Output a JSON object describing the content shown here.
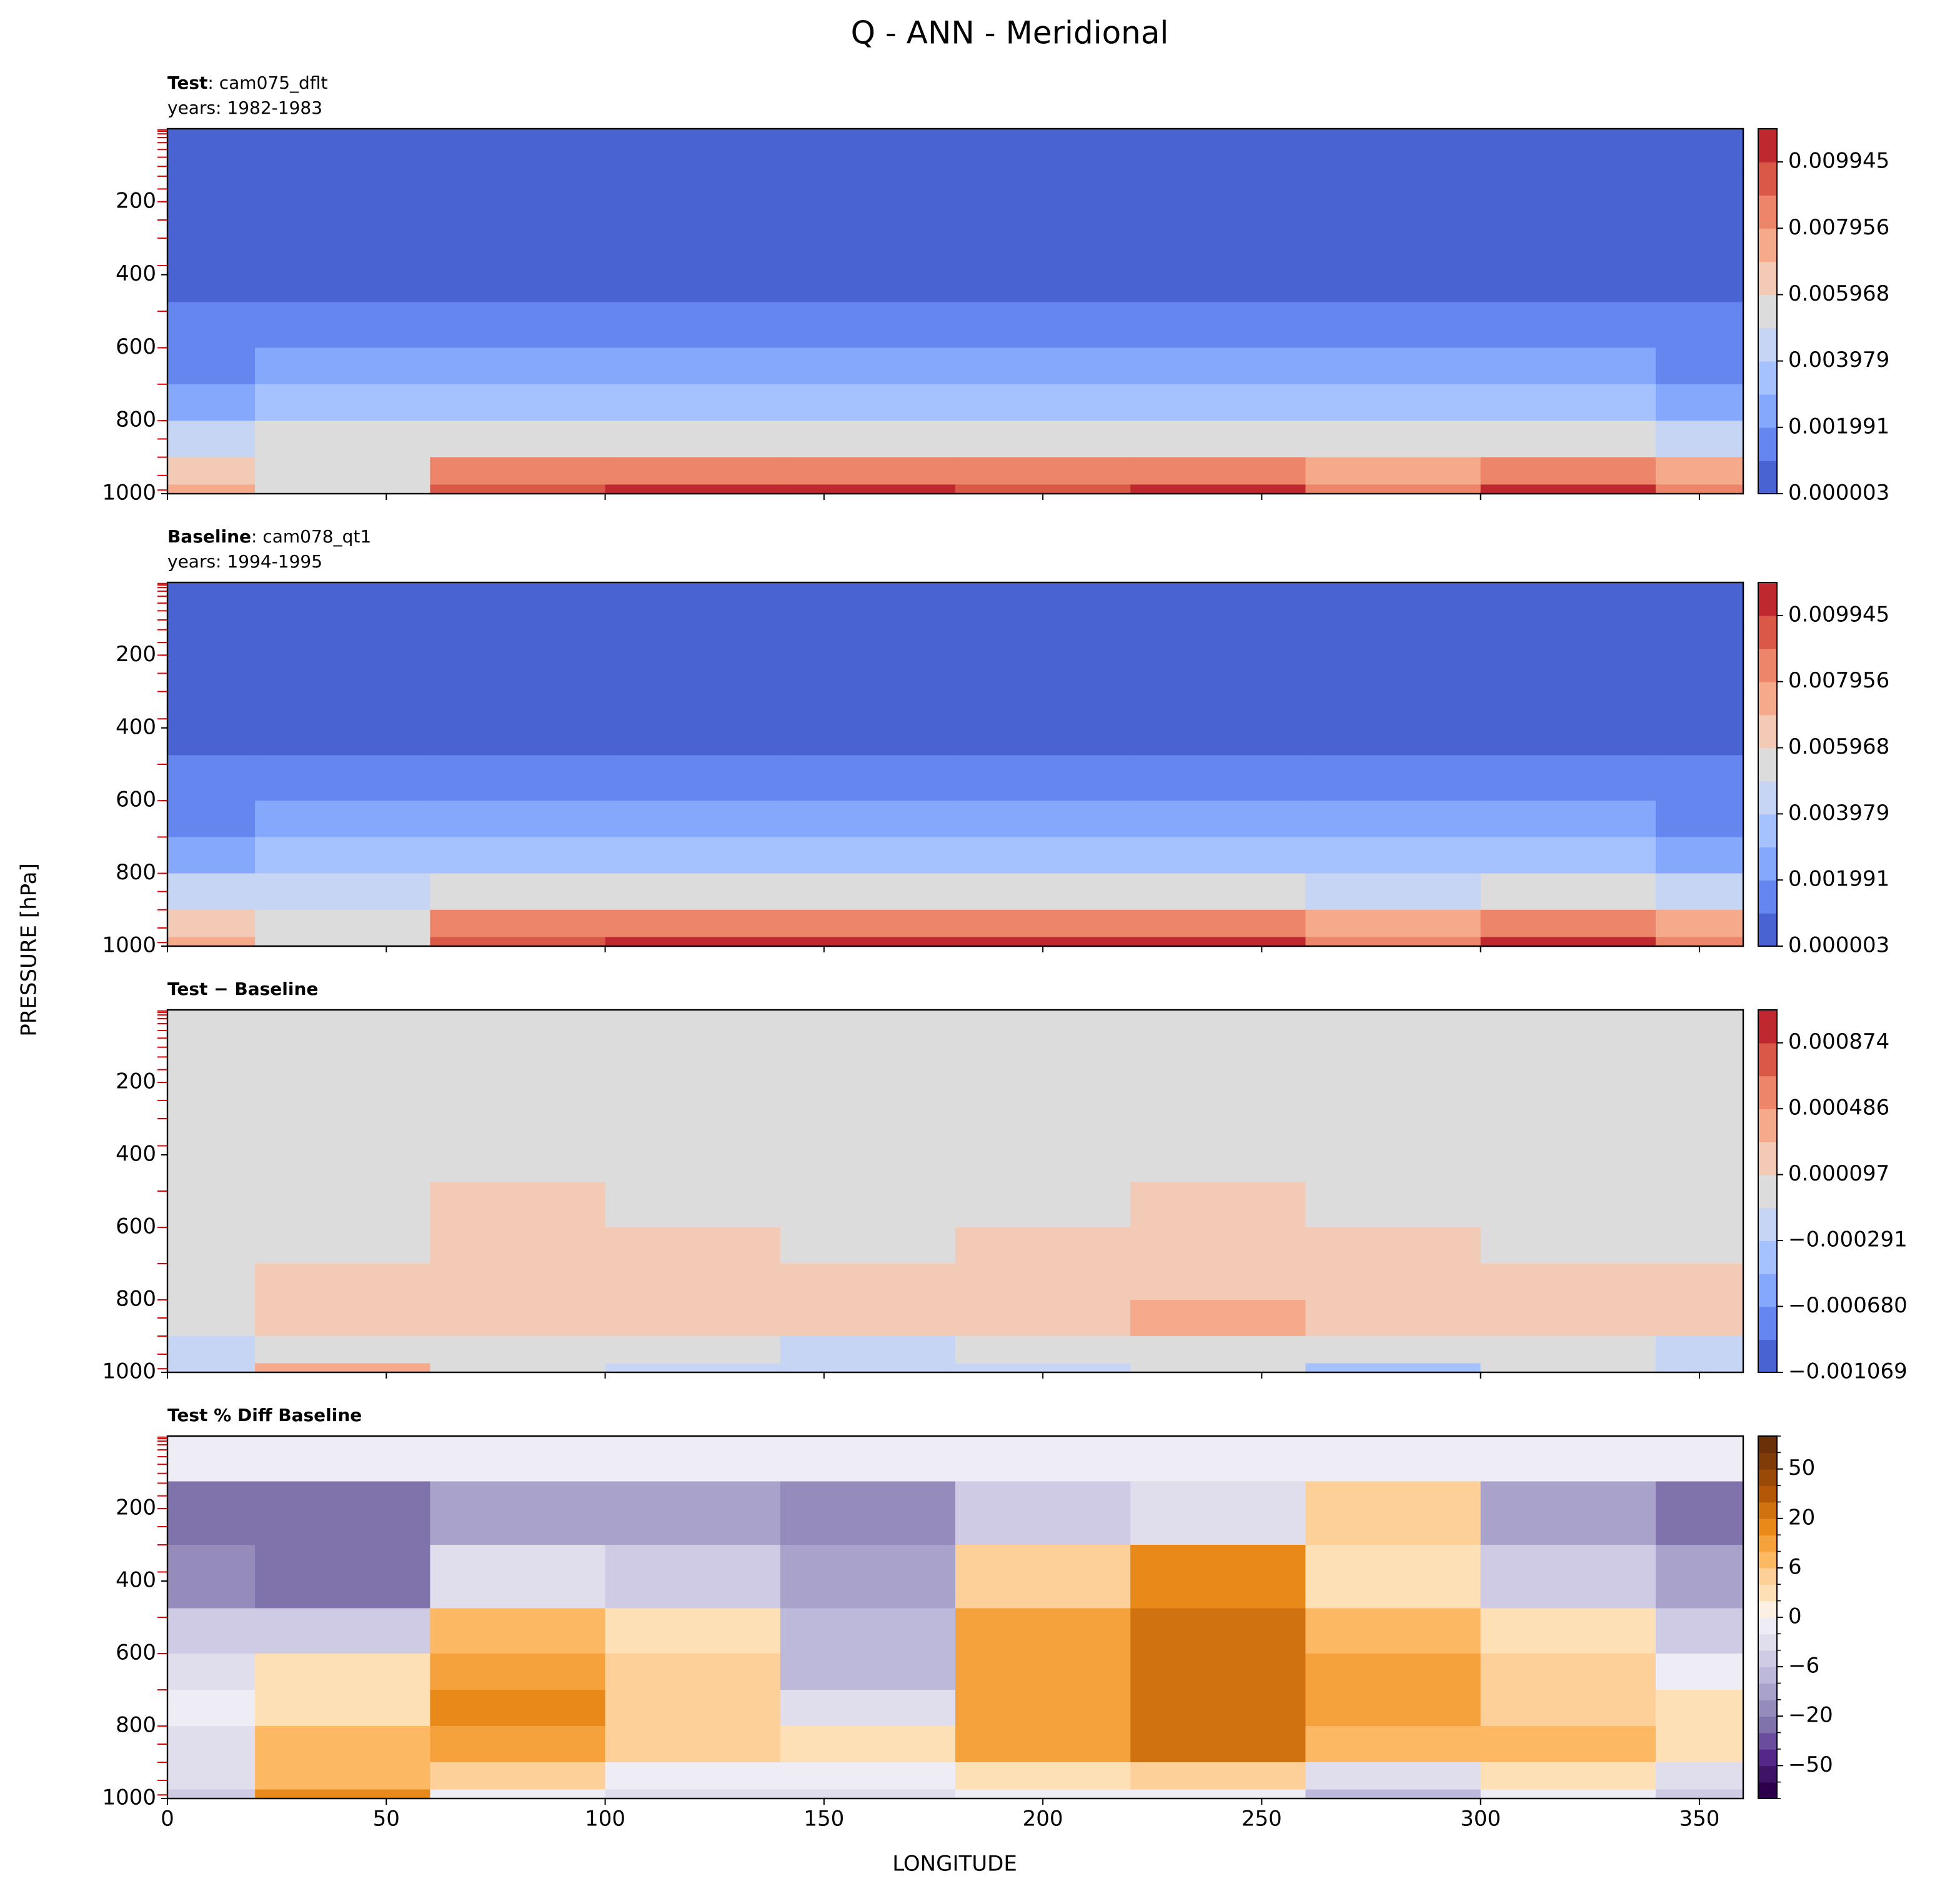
{
  "title": "Q - ANN - Meridional",
  "xlabel": "LONGITUDE",
  "ylabel": "PRESSURE [hPa]",
  "chart_data": [
    {
      "type": "contour",
      "title": "Test",
      "title_suffix": ": cam075_dflt",
      "years": "years: 1982-1983",
      "x": [
        0,
        40,
        80,
        120,
        160,
        200,
        240,
        280,
        320,
        360
      ],
      "y": [
        50,
        200,
        400,
        550,
        650,
        750,
        850,
        950,
        1000
      ],
      "z": [
        [
          1e-05,
          1e-05,
          1e-05,
          1e-05,
          1e-05,
          1e-05,
          1e-05,
          1e-05,
          1e-05,
          1e-05
        ],
        [
          0.0001,
          0.0001,
          0.0001,
          0.0001,
          0.0001,
          0.0001,
          0.0001,
          0.0001,
          0.0001,
          0.0001
        ],
        [
          0.0004,
          0.0005,
          0.0006,
          0.0006,
          0.0006,
          0.0006,
          0.0005,
          0.0005,
          0.0005,
          0.0004
        ],
        [
          0.0011,
          0.0012,
          0.0015,
          0.0016,
          0.0015,
          0.0015,
          0.0013,
          0.0013,
          0.0014,
          0.0011
        ],
        [
          0.0018,
          0.0021,
          0.0025,
          0.0026,
          0.0025,
          0.0025,
          0.0021,
          0.0022,
          0.0023,
          0.0018
        ],
        [
          0.0028,
          0.0032,
          0.0036,
          0.0037,
          0.0036,
          0.0036,
          0.0032,
          0.0033,
          0.0034,
          0.0028
        ],
        [
          0.0047,
          0.005,
          0.0056,
          0.0058,
          0.0057,
          0.0056,
          0.0054,
          0.005,
          0.0055,
          0.0048
        ],
        [
          0.0068,
          0.0056,
          0.0082,
          0.0086,
          0.0085,
          0.0084,
          0.0085,
          0.0072,
          0.0085,
          0.007
        ],
        [
          0.0078,
          0.0058,
          0.0098,
          0.0104,
          0.0102,
          0.0099,
          0.0101,
          0.0082,
          0.0102,
          0.0086
        ]
      ],
      "xlim": [
        0,
        360
      ],
      "ylim": [
        1000,
        0
      ],
      "xticks": [
        0,
        50,
        100,
        150,
        200,
        250,
        300,
        350
      ],
      "yticks": [
        200,
        400,
        600,
        800,
        1000
      ],
      "show_xtick_labels": false,
      "model_levels": [
        3,
        7,
        14,
        24,
        38,
        57,
        78,
        103,
        130,
        165,
        200,
        250,
        300,
        375,
        500,
        600,
        700,
        800,
        850,
        900,
        950,
        990
      ],
      "levels": [
        3e-06,
        0.000997,
        0.001991,
        0.002985,
        0.003979,
        0.004974,
        0.005968,
        0.006962,
        0.007956,
        0.00895,
        0.009945,
        0.010939
      ],
      "colors": [
        "#4a63d3",
        "#6586ee",
        "#85a7fc",
        "#a5c2fe",
        "#c5d5f3",
        "#dddcdc",
        "#f2cab5",
        "#f5aa8c",
        "#ec8569",
        "#d95848",
        "#c0282f"
      ],
      "colorbar_ticks": [
        {
          "value": 3e-06,
          "label": "0.000003"
        },
        0.001991,
        0.003979,
        0.005968,
        0.007956,
        0.009945
      ]
    },
    {
      "type": "contour",
      "title": "Baseline",
      "title_suffix": ": cam078_qt1",
      "years": "years: 1994-1995",
      "x": [
        0,
        40,
        80,
        120,
        160,
        200,
        240,
        280,
        320,
        360
      ],
      "y": [
        50,
        200,
        400,
        550,
        650,
        750,
        850,
        950,
        1000
      ],
      "z": [
        [
          1e-05,
          1e-05,
          1e-05,
          1e-05,
          1e-05,
          1e-05,
          1e-05,
          1e-05,
          1e-05,
          1e-05
        ],
        [
          0.0001,
          0.0001,
          0.0001,
          0.0001,
          0.0001,
          0.0001,
          0.0001,
          0.0001,
          0.0001,
          0.0001
        ],
        [
          0.0004,
          0.0005,
          0.0006,
          0.0006,
          0.0006,
          0.0006,
          0.0005,
          0.0005,
          0.0005,
          0.0004
        ],
        [
          0.0011,
          0.0012,
          0.0015,
          0.0016,
          0.0015,
          0.0015,
          0.0013,
          0.0013,
          0.0014,
          0.0011
        ],
        [
          0.0018,
          0.0021,
          0.0024,
          0.0025,
          0.0025,
          0.0024,
          0.002,
          0.0021,
          0.0023,
          0.0018
        ],
        [
          0.0028,
          0.0031,
          0.0034,
          0.0036,
          0.0035,
          0.0034,
          0.003,
          0.0031,
          0.0033,
          0.0028
        ],
        [
          0.0047,
          0.0049,
          0.0054,
          0.0057,
          0.0056,
          0.0054,
          0.0051,
          0.0048,
          0.0053,
          0.0047
        ],
        [
          0.0069,
          0.0055,
          0.0081,
          0.0086,
          0.0086,
          0.0084,
          0.0085,
          0.0073,
          0.0085,
          0.0071
        ],
        [
          0.0079,
          0.0056,
          0.0098,
          0.0106,
          0.0104,
          0.01,
          0.0102,
          0.0086,
          0.0103,
          0.0088
        ]
      ],
      "xlim": [
        0,
        360
      ],
      "ylim": [
        1000,
        0
      ],
      "xticks": [
        0,
        50,
        100,
        150,
        200,
        250,
        300,
        350
      ],
      "yticks": [
        200,
        400,
        600,
        800,
        1000
      ],
      "show_xtick_labels": false,
      "model_levels": [
        3,
        7,
        14,
        24,
        38,
        57,
        78,
        103,
        130,
        165,
        200,
        250,
        300,
        375,
        500,
        600,
        700,
        800,
        850,
        900,
        950,
        990
      ],
      "levels": [
        3e-06,
        0.000997,
        0.001991,
        0.002985,
        0.003979,
        0.004974,
        0.005968,
        0.006962,
        0.007956,
        0.00895,
        0.009945,
        0.010939
      ],
      "colors": [
        "#4a63d3",
        "#6586ee",
        "#85a7fc",
        "#a5c2fe",
        "#c5d5f3",
        "#dddcdc",
        "#f2cab5",
        "#f5aa8c",
        "#ec8569",
        "#d95848",
        "#c0282f"
      ],
      "colorbar_ticks": [
        {
          "value": 3e-06,
          "label": "0.000003"
        },
        0.001991,
        0.003979,
        0.005968,
        0.007956,
        0.009945
      ]
    },
    {
      "type": "contour",
      "title": "Test − Baseline",
      "x": [
        0,
        40,
        80,
        120,
        160,
        200,
        240,
        280,
        320,
        360
      ],
      "y": [
        50,
        200,
        400,
        550,
        650,
        750,
        850,
        950,
        1000
      ],
      "z": [
        [
          1e-05,
          1e-05,
          1e-05,
          1e-05,
          1e-05,
          1e-05,
          1e-05,
          1e-05,
          1e-05,
          1e-05
        ],
        [
          1e-05,
          1e-05,
          1e-05,
          1e-05,
          1e-05,
          1e-05,
          1e-05,
          1e-05,
          1e-05,
          1e-05
        ],
        [
          2e-05,
          2e-05,
          2e-05,
          2e-05,
          2e-05,
          2e-05,
          5e-05,
          2e-05,
          2e-05,
          2e-05
        ],
        [
          2e-05,
          3e-05,
          0.0001,
          6e-05,
          3e-05,
          8e-05,
          0.00012,
          7e-05,
          5e-05,
          2e-05
        ],
        [
          3e-05,
          5e-05,
          0.00014,
          0.00011,
          4e-05,
          0.00013,
          0.00018,
          0.00012,
          9e-05,
          5e-05
        ],
        [
          4e-05,
          0.0001,
          0.0002,
          0.00013,
          0.00012,
          0.00018,
          0.00024,
          0.00016,
          0.00015,
          0.0001
        ],
        [
          2e-05,
          0.00012,
          0.00026,
          0.00015,
          0.00013,
          0.00026,
          0.00032,
          0.0002,
          0.00024,
          0.00014
        ],
        [
          -0.0001,
          8e-05,
          5e-05,
          -5e-05,
          -0.00012,
          2e-05,
          4e-05,
          -8e-05,
          3e-05,
          -0.00011
        ],
        [
          -0.00013,
          0.0003,
          0,
          -0.0002,
          -0.0002,
          -0.0001,
          -5e-05,
          -0.0004,
          -5e-05,
          -0.00015
        ]
      ],
      "xlim": [
        0,
        360
      ],
      "ylim": [
        1000,
        0
      ],
      "xticks": [
        0,
        50,
        100,
        150,
        200,
        250,
        300,
        350
      ],
      "yticks": [
        200,
        400,
        600,
        800,
        1000
      ],
      "show_xtick_labels": false,
      "model_levels": [
        3,
        7,
        14,
        24,
        38,
        57,
        78,
        103,
        130,
        165,
        200,
        250,
        300,
        375,
        500,
        600,
        700,
        800,
        850,
        900,
        950,
        990
      ],
      "levels": [
        -0.001069,
        -0.000875,
        -0.00068,
        -0.000486,
        -0.000291,
        -9.7e-05,
        9.7e-05,
        0.000292,
        0.000486,
        0.00068,
        0.000874,
        0.001069
      ],
      "colors": [
        "#4a63d3",
        "#6586ee",
        "#85a7fc",
        "#a5c2fe",
        "#c5d5f3",
        "#dddcdc",
        "#f2cab5",
        "#f5aa8c",
        "#ec8569",
        "#d95848",
        "#c0282f"
      ],
      "colorbar_ticks": [
        {
          "value": -0.001069,
          "label": "−0.001069"
        },
        {
          "value": -0.00068,
          "label": "−0.000680"
        },
        {
          "value": -0.000291,
          "label": "−0.000291"
        },
        {
          "value": 9.7e-05,
          "label": "0.000097"
        },
        {
          "value": 0.000486,
          "label": "0.000486"
        },
        {
          "value": 0.000874,
          "label": "0.000874"
        }
      ]
    },
    {
      "type": "contour",
      "title": "Test % Diff Baseline",
      "x": [
        0,
        40,
        80,
        120,
        160,
        200,
        240,
        280,
        320,
        360
      ],
      "y": [
        50,
        200,
        400,
        550,
        650,
        750,
        850,
        950,
        1000
      ],
      "z": [
        [
          -2,
          -2,
          -2,
          -2,
          -2,
          -2,
          -2,
          -2,
          -2,
          -2
        ],
        [
          -22,
          -24,
          -12,
          -12,
          -18,
          -6,
          -3,
          5,
          -14,
          -22
        ],
        [
          -18,
          -22,
          -4,
          -6,
          -14,
          5,
          15,
          3,
          -6,
          -12
        ],
        [
          -6,
          -5,
          8,
          3,
          -10,
          12,
          22,
          8,
          3,
          -6
        ],
        [
          -3,
          2,
          14,
          4,
          -8,
          14,
          24,
          10,
          4,
          -2
        ],
        [
          -2,
          3,
          16,
          5,
          -3,
          12,
          25,
          12,
          5,
          3
        ],
        [
          -3,
          6,
          12,
          5,
          2,
          10,
          22,
          8,
          7,
          3
        ],
        [
          -4,
          6,
          4,
          -2,
          -2,
          2,
          4,
          -3,
          2,
          -4
        ],
        [
          -6,
          18,
          -2,
          -4,
          -4,
          -2,
          -2,
          -10,
          -2,
          -6
        ]
      ],
      "xlim": [
        0,
        360
      ],
      "ylim": [
        1000,
        0
      ],
      "xticks": [
        0,
        50,
        100,
        150,
        200,
        250,
        300,
        350
      ],
      "yticks": [
        200,
        400,
        600,
        800,
        1000
      ],
      "show_xtick_labels": true,
      "model_levels": [
        3,
        7,
        14,
        24,
        38,
        57,
        78,
        103,
        130,
        165,
        200,
        250,
        300,
        375,
        500,
        600,
        700,
        800,
        850,
        900,
        950,
        990
      ],
      "levels": [
        -100,
        -75,
        -50,
        -40,
        -30,
        -20,
        -15,
        -10,
        -6,
        -4,
        -2,
        0,
        2,
        4,
        6,
        10,
        15,
        20,
        30,
        40,
        50,
        75,
        100
      ],
      "colors": [
        "#2d004b",
        "#3e1466",
        "#542788",
        "#6a4d9c",
        "#8073ac",
        "#958cbb",
        "#a9a3cc",
        "#bcb9da",
        "#cfcbe4",
        "#e0dded",
        "#eeecf4",
        "#fbf0e2",
        "#fee0b6",
        "#fdd09a",
        "#fdb863",
        "#f5a13c",
        "#e8891a",
        "#d17210",
        "#b35806",
        "#9a4a07",
        "#7f3b08",
        "#6a3008"
      ],
      "colorbar_ticks": [
        {
          "value": -50,
          "label": "−50"
        },
        {
          "value": -20,
          "label": "−20"
        },
        {
          "value": -6,
          "label": "−6"
        },
        0,
        6,
        20,
        50
      ]
    }
  ]
}
